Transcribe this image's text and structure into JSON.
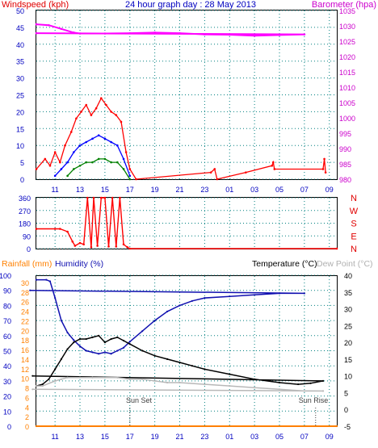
{
  "header": {
    "left_label": "Windspeed (kph)",
    "title": "24 hour graph day : 28 May 2013",
    "right_label": "Barometer (hpa)"
  },
  "colors": {
    "wind_label": "#e00000",
    "wind_gust": "#ff0000",
    "wind_avg": "#0000ff",
    "wind_min": "#008000",
    "barometer": "#ff00ff",
    "barometer_axis": "#cc00cc",
    "direction": "#ff0000",
    "rain": "#ff8000",
    "humidity": "#1010b0",
    "temperature": "#000000",
    "dewpoint": "#b8b8b8",
    "grid": "#008080",
    "axis_blue": "#0000c0"
  },
  "chart_data": [
    {
      "type": "line",
      "title": "24 hour graph day : 28 May 2013",
      "ylabel": "Windspeed (kph)",
      "y2label": "Barometer (hpa)",
      "x_ticks": [
        "11",
        "13",
        "15",
        "17",
        "19",
        "21",
        "23",
        "01",
        "03",
        "05",
        "07",
        "09"
      ],
      "ylim": [
        0,
        50
      ],
      "y_ticks": [
        0,
        5,
        10,
        15,
        20,
        25,
        30,
        35,
        40,
        45,
        50
      ],
      "y2lim": [
        980,
        1035
      ],
      "y2_ticks": [
        980,
        985,
        990,
        995,
        1000,
        1005,
        1010,
        1015,
        1020,
        1025,
        1030,
        1035
      ],
      "x_range_hours": [
        9.5,
        33.6
      ],
      "series": [
        {
          "name": "Barometer",
          "axis": "right",
          "x": [
            9.5,
            10.5,
            11.5,
            12.5,
            13.0,
            15.0,
            17.0,
            19.0,
            21.0,
            23.0,
            1.0,
            3.0,
            5.0,
            7.0,
            9.5
          ],
          "values": [
            1030.5,
            1030.2,
            1029.0,
            1027.8,
            1027.5,
            1027.5,
            1027.6,
            1027.8,
            1027.6,
            1027.2,
            1027.1,
            1026.8,
            1027.0,
            1027.2,
            1027.6
          ]
        },
        {
          "name": "Wind gust",
          "axis": "left",
          "x": [
            9.5,
            10.2,
            10.6,
            11.0,
            11.4,
            11.8,
            12.3,
            12.7,
            13.1,
            13.5,
            13.9,
            14.3,
            14.7,
            15.1,
            15.5,
            15.9,
            16.3,
            16.7,
            17.0,
            17.5,
            23.5,
            23.8,
            24.0,
            2.3,
            4.4,
            4.5,
            4.6,
            8.5,
            8.6,
            8.7
          ],
          "values": [
            3,
            6,
            4,
            8,
            5,
            10,
            14,
            18,
            20,
            22,
            19,
            21,
            24,
            22,
            20,
            19,
            17,
            8,
            3,
            0,
            2,
            3,
            0,
            2,
            4,
            5,
            3,
            3,
            6,
            2
          ]
        },
        {
          "name": "Wind average",
          "axis": "left",
          "x": [
            11.0,
            11.5,
            12.0,
            12.5,
            13.0,
            13.5,
            14.0,
            14.5,
            15.0,
            15.5,
            16.0,
            16.5,
            17.0
          ],
          "values": [
            1,
            3,
            5,
            8,
            10,
            11,
            12,
            13,
            12,
            11,
            10,
            6,
            1
          ]
        },
        {
          "name": "Wind min",
          "axis": "left",
          "x": [
            12.0,
            12.5,
            13.0,
            13.5,
            14.0,
            14.5,
            15.0,
            15.5,
            16.0,
            16.5,
            17.0
          ],
          "values": [
            1,
            3,
            4,
            5,
            5,
            6,
            6,
            5,
            5,
            3,
            0
          ]
        }
      ]
    },
    {
      "type": "line",
      "title": "",
      "ylabel": "",
      "y_ticks": [
        0,
        90,
        180,
        270,
        360
      ],
      "ylim": [
        0,
        360
      ],
      "right_labels": [
        "N",
        "W",
        "S",
        "E",
        "N"
      ],
      "x_range_hours": [
        9.5,
        33.6
      ],
      "series": [
        {
          "name": "Wind direction",
          "x": [
            9.5,
            11.0,
            11.4,
            12.0,
            12.4,
            12.6,
            13.0,
            13.3,
            13.6,
            13.9,
            14.1,
            14.4,
            14.7,
            15.0,
            15.3,
            15.6,
            15.9,
            16.2,
            16.5,
            16.8,
            17.0,
            33.6
          ],
          "values": [
            140,
            140,
            140,
            120,
            50,
            20,
            40,
            30,
            360,
            10,
            360,
            20,
            360,
            360,
            15,
            360,
            15,
            360,
            30,
            10,
            0,
            0
          ]
        }
      ]
    },
    {
      "type": "line",
      "title": "",
      "ylabel": "Rainfall (mm)",
      "y2label": "Humidity (%)",
      "y3label": "Temperature (°C)",
      "y4label": "Dew Point (°C)",
      "x_ticks": [
        "11",
        "13",
        "15",
        "17",
        "19",
        "21",
        "23",
        "01",
        "03",
        "05",
        "07",
        "09"
      ],
      "humidity_ticks": [
        0,
        10,
        20,
        30,
        40,
        50,
        60,
        70,
        80,
        90,
        100
      ],
      "rain_ticks": [
        0,
        2,
        4,
        6,
        8,
        10,
        12,
        14,
        16,
        18,
        20,
        22,
        24,
        26,
        28,
        30
      ],
      "temp_ticks": [
        -5,
        0,
        5,
        10,
        15,
        20,
        25,
        30,
        35,
        40
      ],
      "annotations": [
        "Sun Set",
        "Sun Rise"
      ],
      "x_range_hours": [
        9.5,
        33.6
      ],
      "series": [
        {
          "name": "Humidity",
          "axis": "humidity",
          "x": [
            9.5,
            10.3,
            10.6,
            11.0,
            11.5,
            12.0,
            12.5,
            13.0,
            13.5,
            14.0,
            14.5,
            15.0,
            15.5,
            16.0,
            16.5,
            17.0,
            18.0,
            19.0,
            20.0,
            21.0,
            22.0,
            23.0,
            1.0,
            3.0,
            5.0,
            7.0,
            9.0
          ],
          "values": [
            97,
            97,
            96,
            85,
            70,
            62,
            57,
            53,
            50,
            49,
            48,
            49,
            48,
            50,
            52,
            56,
            63,
            70,
            76,
            80,
            83,
            85,
            86,
            87,
            88,
            88,
            90
          ]
        },
        {
          "name": "Temperature",
          "axis": "temp",
          "x": [
            9.5,
            10.0,
            10.5,
            11.0,
            11.5,
            12.0,
            12.5,
            13.0,
            13.5,
            14.0,
            14.5,
            15.0,
            15.5,
            16.0,
            16.5,
            17.0,
            18.0,
            19.0,
            20.0,
            21.0,
            22.0,
            23.0,
            1.0,
            3.0,
            5.0,
            6.5,
            7.5,
            8.5,
            9.2
          ],
          "values": [
            7,
            7.5,
            9,
            12,
            15,
            18,
            20,
            21,
            21,
            21.5,
            22,
            20,
            21,
            21.5,
            20.5,
            19.5,
            17.5,
            16,
            15,
            14,
            13,
            12,
            10.5,
            9,
            8,
            7.5,
            7.8,
            8.5,
            10
          ]
        },
        {
          "name": "Dew Point",
          "axis": "temp",
          "x": [
            9.5,
            10.0,
            11.0,
            11.5,
            12.0,
            13.0,
            14.0,
            15.0,
            16.0,
            17.0,
            18.0,
            19.0,
            20.0,
            21.0,
            23.0,
            1.0,
            3.0,
            5.0,
            7.0,
            8.5,
            9.2
          ],
          "values": [
            7,
            7,
            8.5,
            9,
            9.5,
            9.5,
            9.5,
            9.5,
            9.5,
            9,
            9,
            8.5,
            8,
            8,
            7.5,
            7,
            6.5,
            6,
            5.5,
            5.5,
            6
          ]
        },
        {
          "name": "Rainfall",
          "axis": "rain",
          "x": [
            9.5,
            33.6
          ],
          "values": [
            0,
            0
          ]
        }
      ]
    }
  ]
}
